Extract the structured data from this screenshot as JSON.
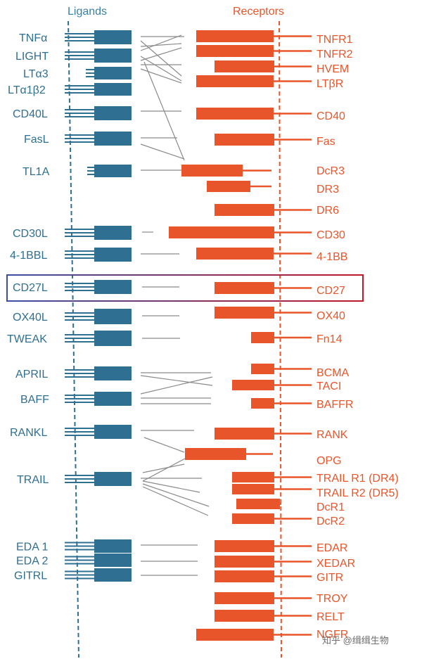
{
  "headers": {
    "ligands": "Ligands",
    "receptors": "Receptors"
  },
  "ligands": [
    {
      "label": "TNFα"
    },
    {
      "label": "LIGHT"
    },
    {
      "label": "LTα3"
    },
    {
      "label": "LTα1β2"
    },
    {
      "label": "CD40L"
    },
    {
      "label": "FasL"
    },
    {
      "label": "TL1A"
    },
    {
      "label": "CD30L"
    },
    {
      "label": "4-1BBL"
    },
    {
      "label": "CD27L"
    },
    {
      "label": "OX40L"
    },
    {
      "label": "TWEAK"
    },
    {
      "label": "APRIL"
    },
    {
      "label": "BAFF"
    },
    {
      "label": "RANKL"
    },
    {
      "label": "TRAIL"
    },
    {
      "label": "EDA 1"
    },
    {
      "label": "EDA 2"
    },
    {
      "label": "GITRL"
    }
  ],
  "receptors": [
    {
      "label": "TNFR1"
    },
    {
      "label": "TNFR2"
    },
    {
      "label": "HVEM"
    },
    {
      "label": "LTβR"
    },
    {
      "label": "CD40"
    },
    {
      "label": "Fas"
    },
    {
      "label": "DcR3"
    },
    {
      "label": "DR3"
    },
    {
      "label": "DR6"
    },
    {
      "label": "CD30"
    },
    {
      "label": "4-1BB"
    },
    {
      "label": "CD27"
    },
    {
      "label": "OX40"
    },
    {
      "label": "Fn14"
    },
    {
      "label": "BCMA"
    },
    {
      "label": "TACI"
    },
    {
      "label": "BAFFR"
    },
    {
      "label": "RANK"
    },
    {
      "label": "OPG"
    },
    {
      "label": "TRAIL R1 (DR4)"
    },
    {
      "label": "TRAIL R2 (DR5)"
    },
    {
      "label": "DcR1"
    },
    {
      "label": "DcR2"
    },
    {
      "label": "EDAR"
    },
    {
      "label": "XEDAR"
    },
    {
      "label": "GITR"
    },
    {
      "label": "TROY"
    },
    {
      "label": "RELT"
    },
    {
      "label": "NGFR"
    }
  ],
  "highlight": {
    "pair": "CD27L – CD27"
  },
  "watermark": "知乎 @缉缉生物",
  "colors": {
    "ligand": "#2f6f92",
    "receptor": "#e8552a",
    "connector": "#8a8a8a",
    "highlight_start": "#3b4fa0",
    "highlight_end": "#c0182a"
  }
}
